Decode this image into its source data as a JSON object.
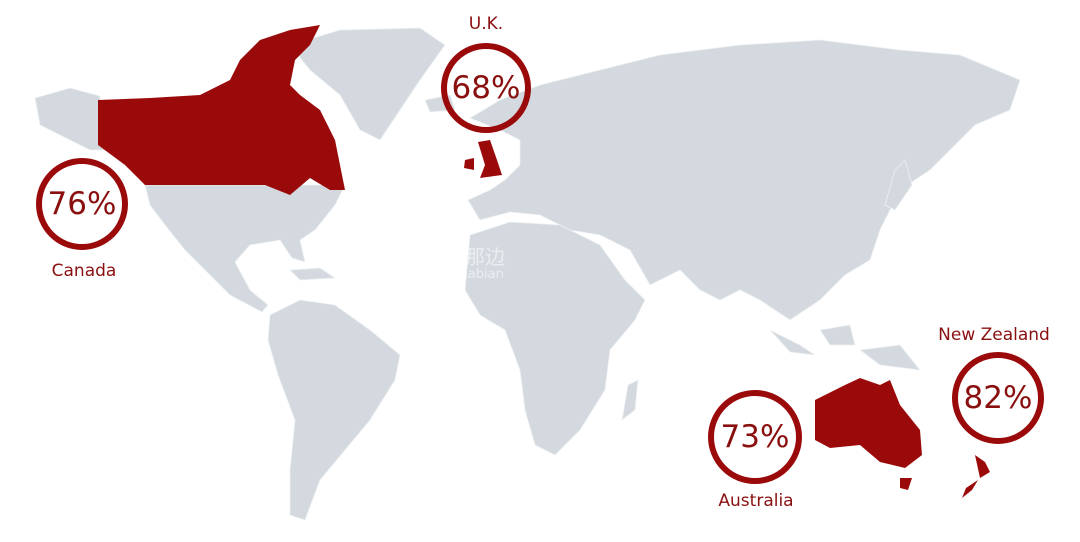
{
  "colors": {
    "highlight": "#9b0a0a",
    "land": "#d3d9de",
    "text": "#8a1010"
  },
  "countries": [
    {
      "name": "Canada",
      "value": "76%"
    },
    {
      "name": "U.K.",
      "value": "68%"
    },
    {
      "name": "Australia",
      "value": "73%"
    },
    {
      "name": "New Zealand",
      "value": "82%"
    }
  ],
  "watermark": {
    "cn": "海那边",
    "en": "Hinabian"
  }
}
